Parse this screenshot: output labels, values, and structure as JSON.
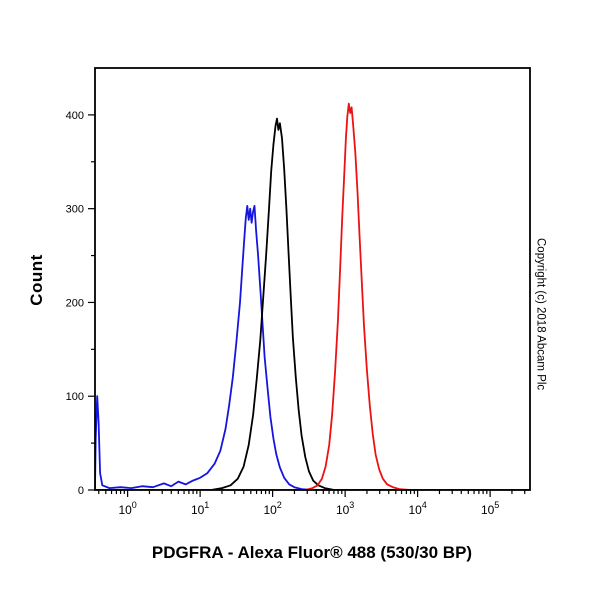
{
  "page": {
    "copyright": "Copyright (c) 2018 Abcam Plc"
  },
  "chart_data": {
    "type": "line",
    "subtype": "flow-cytometry-histogram",
    "title": "PDGFRA - Alexa Fluor® 488 (530/30 BP)",
    "xlabel": "PDGFRA - Alexa Fluor® 488 (530/30 BP)",
    "ylabel": "Count",
    "x_scale": "log10",
    "x_domain_log": [
      -0.45,
      5.55
    ],
    "ylim": [
      0,
      450
    ],
    "y_major_ticks": [
      0,
      100,
      200,
      300,
      400
    ],
    "y_minor_step": 50,
    "x_major_tick_exponents": [
      0,
      1,
      2,
      3,
      4,
      5
    ],
    "grid": false,
    "legend": "none",
    "axis_color": "#000000",
    "series": [
      {
        "name": "blue-curve",
        "color": "#1515e0",
        "peak_x_approx": 50,
        "peak_count_approx": 305,
        "points": [
          [
            -0.45,
            2
          ],
          [
            -0.44,
            55
          ],
          [
            -0.42,
            100
          ],
          [
            -0.4,
            72
          ],
          [
            -0.38,
            18
          ],
          [
            -0.35,
            5
          ],
          [
            -0.25,
            2
          ],
          [
            -0.1,
            3
          ],
          [
            0.05,
            2
          ],
          [
            0.2,
            4
          ],
          [
            0.35,
            3
          ],
          [
            0.5,
            7
          ],
          [
            0.6,
            4
          ],
          [
            0.7,
            9
          ],
          [
            0.8,
            6
          ],
          [
            0.9,
            10
          ],
          [
            1.0,
            13
          ],
          [
            1.1,
            18
          ],
          [
            1.2,
            28
          ],
          [
            1.28,
            42
          ],
          [
            1.35,
            65
          ],
          [
            1.4,
            90
          ],
          [
            1.45,
            120
          ],
          [
            1.5,
            158
          ],
          [
            1.55,
            200
          ],
          [
            1.58,
            235
          ],
          [
            1.61,
            268
          ],
          [
            1.63,
            290
          ],
          [
            1.65,
            303
          ],
          [
            1.67,
            288
          ],
          [
            1.69,
            300
          ],
          [
            1.71,
            285
          ],
          [
            1.73,
            297
          ],
          [
            1.75,
            303
          ],
          [
            1.77,
            278
          ],
          [
            1.8,
            250
          ],
          [
            1.83,
            215
          ],
          [
            1.86,
            178
          ],
          [
            1.89,
            142
          ],
          [
            1.93,
            108
          ],
          [
            1.97,
            78
          ],
          [
            2.01,
            55
          ],
          [
            2.05,
            38
          ],
          [
            2.1,
            24
          ],
          [
            2.16,
            13
          ],
          [
            2.23,
            6
          ],
          [
            2.3,
            3
          ],
          [
            2.4,
            1
          ],
          [
            2.55,
            0
          ],
          [
            5.55,
            0
          ]
        ]
      },
      {
        "name": "black-curve",
        "color": "#000000",
        "peak_x_approx": 115,
        "peak_count_approx": 396,
        "points": [
          [
            -0.45,
            0
          ],
          [
            1.15,
            0
          ],
          [
            1.3,
            2
          ],
          [
            1.42,
            5
          ],
          [
            1.52,
            12
          ],
          [
            1.6,
            25
          ],
          [
            1.67,
            48
          ],
          [
            1.73,
            80
          ],
          [
            1.78,
            118
          ],
          [
            1.83,
            160
          ],
          [
            1.87,
            205
          ],
          [
            1.91,
            250
          ],
          [
            1.95,
            300
          ],
          [
            1.98,
            340
          ],
          [
            2.01,
            368
          ],
          [
            2.04,
            388
          ],
          [
            2.06,
            396
          ],
          [
            2.08,
            384
          ],
          [
            2.1,
            391
          ],
          [
            2.13,
            375
          ],
          [
            2.16,
            342
          ],
          [
            2.19,
            300
          ],
          [
            2.22,
            252
          ],
          [
            2.25,
            205
          ],
          [
            2.28,
            162
          ],
          [
            2.32,
            120
          ],
          [
            2.36,
            85
          ],
          [
            2.4,
            58
          ],
          [
            2.45,
            35
          ],
          [
            2.5,
            20
          ],
          [
            2.56,
            10
          ],
          [
            2.63,
            5
          ],
          [
            2.72,
            2
          ],
          [
            2.85,
            0
          ],
          [
            5.55,
            0
          ]
        ]
      },
      {
        "name": "red-curve",
        "color": "#ee1111",
        "peak_x_approx": 1100,
        "peak_count_approx": 412,
        "points": [
          [
            -0.45,
            0
          ],
          [
            2.45,
            0
          ],
          [
            2.55,
            2
          ],
          [
            2.62,
            5
          ],
          [
            2.68,
            12
          ],
          [
            2.73,
            25
          ],
          [
            2.78,
            48
          ],
          [
            2.82,
            80
          ],
          [
            2.86,
            125
          ],
          [
            2.9,
            180
          ],
          [
            2.93,
            235
          ],
          [
            2.96,
            290
          ],
          [
            2.99,
            340
          ],
          [
            3.01,
            375
          ],
          [
            3.03,
            398
          ],
          [
            3.05,
            412
          ],
          [
            3.07,
            402
          ],
          [
            3.09,
            408
          ],
          [
            3.11,
            390
          ],
          [
            3.14,
            360
          ],
          [
            3.17,
            318
          ],
          [
            3.2,
            270
          ],
          [
            3.23,
            222
          ],
          [
            3.26,
            175
          ],
          [
            3.3,
            128
          ],
          [
            3.34,
            90
          ],
          [
            3.38,
            60
          ],
          [
            3.42,
            38
          ],
          [
            3.47,
            22
          ],
          [
            3.52,
            12
          ],
          [
            3.58,
            6
          ],
          [
            3.66,
            3
          ],
          [
            3.75,
            1
          ],
          [
            3.9,
            0
          ],
          [
            5.55,
            0
          ]
        ]
      }
    ]
  }
}
